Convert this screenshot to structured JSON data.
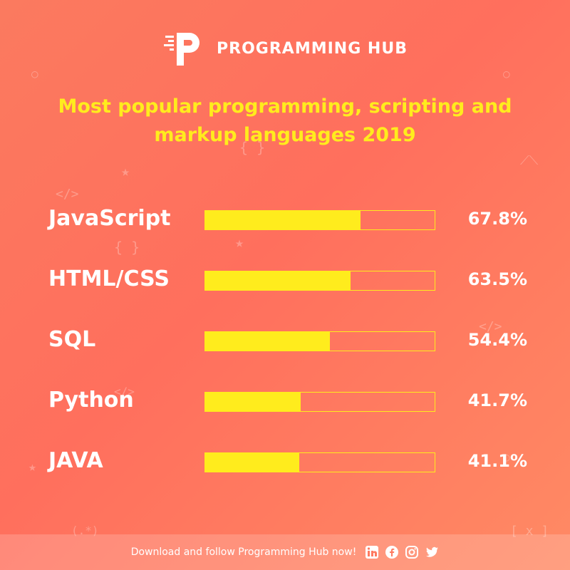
{
  "brand": {
    "name": "PROGRAMMING HUB"
  },
  "footer": {
    "text": "Download and follow Programming Hub now!",
    "social": [
      "linkedin-icon",
      "facebook-icon",
      "instagram-icon",
      "twitter-icon"
    ]
  },
  "colors": {
    "accent": "#ffec1d",
    "background": "#ff735f",
    "text": "#ffffff"
  },
  "chart_data": {
    "type": "bar",
    "orientation": "horizontal",
    "title": "Most popular programming, scripting and markup languages 2019",
    "categories": [
      "JavaScript",
      "HTML/CSS",
      "SQL",
      "Python",
      "JAVA"
    ],
    "values": [
      67.8,
      63.5,
      54.4,
      41.7,
      41.1
    ],
    "value_labels": [
      "67.8%",
      "63.5%",
      "54.4%",
      "41.7%",
      "41.1%"
    ],
    "xlim": [
      0,
      100
    ],
    "grid": false
  }
}
